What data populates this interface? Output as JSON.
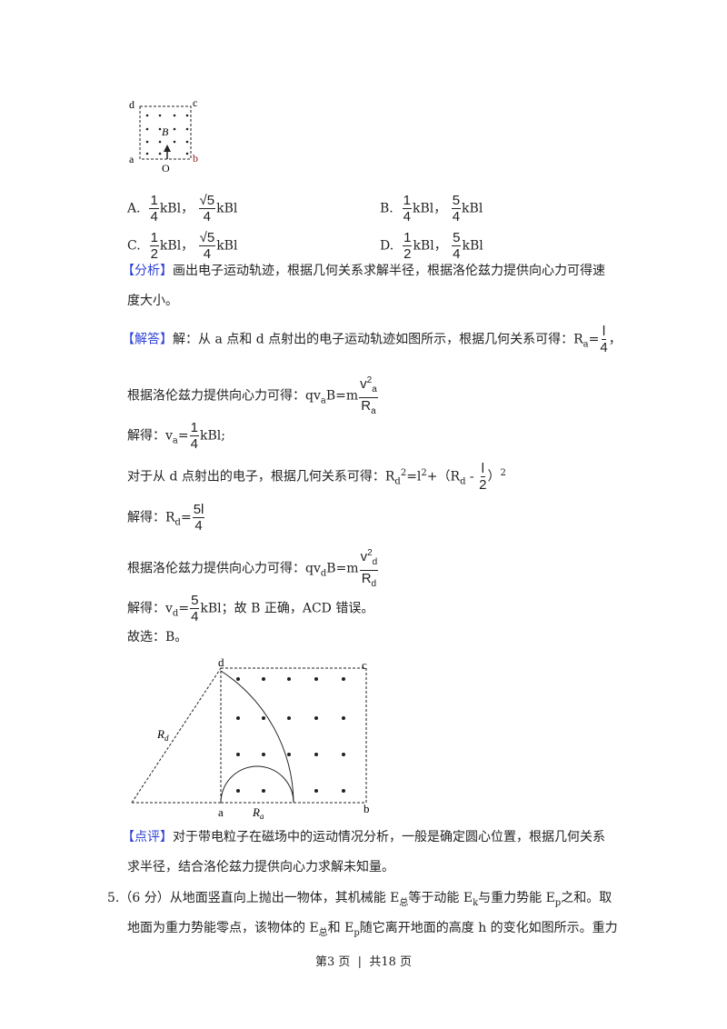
{
  "figure_small": {
    "labels": {
      "a": "a",
      "b": "b",
      "c": "c",
      "d": "d",
      "B": "B",
      "O": "O"
    }
  },
  "options": [
    {
      "letter": "A.",
      "v1": {
        "n": "1",
        "d": "4"
      },
      "v2": {
        "n": "√5",
        "d": "4"
      },
      "unit": "kBl"
    },
    {
      "letter": "B.",
      "v1": {
        "n": "1",
        "d": "4"
      },
      "v2": {
        "n": "5",
        "d": "4"
      },
      "unit": "kBl"
    },
    {
      "letter": "C.",
      "v1": {
        "n": "1",
        "d": "2"
      },
      "v2": {
        "n": "√5",
        "d": "4"
      },
      "unit": "kBl"
    },
    {
      "letter": "D.",
      "v1": {
        "n": "1",
        "d": "2"
      },
      "v2": {
        "n": "5",
        "d": "4"
      },
      "unit": "kBl"
    }
  ],
  "analysis": {
    "tag": "【分析】",
    "line1": "画出电子运动轨迹，根据几何关系求解半径，根据洛伦兹力提供向心力可得速",
    "line2": "度大小。"
  },
  "solution": {
    "tag": "【解答】",
    "l1": "解：从 a 点和 d 点射出的电子运动轨迹如图所示，根据几何关系可得：R",
    "l1_sub": "a",
    "l1_eq": "=",
    "l1_frac": {
      "n": "l",
      "d": "4"
    },
    "l1_end": "，",
    "l2": "根据洛伦兹力提供向心力可得：qv",
    "l2_sub": "a",
    "l2_mid": "B=m",
    "l2_frac": {
      "n": "v",
      "n_sup": "2",
      "n_sub": "a",
      "d": "R",
      "d_sub": "a"
    },
    "l3": "解得：v",
    "l3_sub": "a",
    "l3_eq": "=",
    "l3_frac": {
      "n": "1",
      "d": "4"
    },
    "l3_end": "kBl;",
    "l4": "对于从 d 点射出的电子，根据几何关系可得：R",
    "l4_sub": "d",
    "l4_sup": "2",
    "l4_mid": "=l",
    "l4_sup2": "2",
    "l4_mid2": "+（R",
    "l4_sub2": "d",
    "l4_minus": " - ",
    "l4_frac": {
      "n": "l",
      "d": "2"
    },
    "l4_end": "）",
    "l4_sup3": "2",
    "l5": "解得：R",
    "l5_sub": "d",
    "l5_eq": "=",
    "l5_frac": {
      "n": "5l",
      "d": "4"
    },
    "l6": "根据洛伦兹力提供向心力可得：qv",
    "l6_sub": "d",
    "l6_mid": "B=m",
    "l6_frac": {
      "n": "v",
      "n_sup": "2",
      "n_sub": "d",
      "d": "R",
      "d_sub": "d"
    },
    "l7": "解得：v",
    "l7_sub": "d",
    "l7_eq": "=",
    "l7_frac": {
      "n": "5",
      "d": "4"
    },
    "l7_end": "kBl；故 B 正确，ACD 错误。",
    "l8": "故选：B。"
  },
  "figure_large": {
    "labels": {
      "a": "a",
      "b": "b",
      "c": "c",
      "d": "d",
      "Rd": "R",
      "Rd_sub": "d",
      "Ra": "R",
      "Ra_sub": "a"
    }
  },
  "comment": {
    "tag": "【点评】",
    "line1": "对于带电粒子在磁场中的运动情况分析，一般是确定圆心位置，根据几何关系",
    "line2": "求半径，结合洛伦兹力提供向心力求解未知量。"
  },
  "question5": {
    "number": "5.",
    "l1a": "（6 分）从地面竖直向上抛出一物体，其机械能 E",
    "l1_sub1": "总",
    "l1b": "等于动能 E",
    "l1_sub2": "k",
    "l1c": "与重力势能 E",
    "l1_sub3": "p",
    "l1d": "之和。取",
    "l2a": "地面为重力势能零点，该物体的 E",
    "l2_sub1": "总",
    "l2b": "和 E",
    "l2_sub2": "p",
    "l2c": "随它离开地面的高度 h 的变化如图所示。重力"
  },
  "footer": "第3 页  |  共18 页"
}
